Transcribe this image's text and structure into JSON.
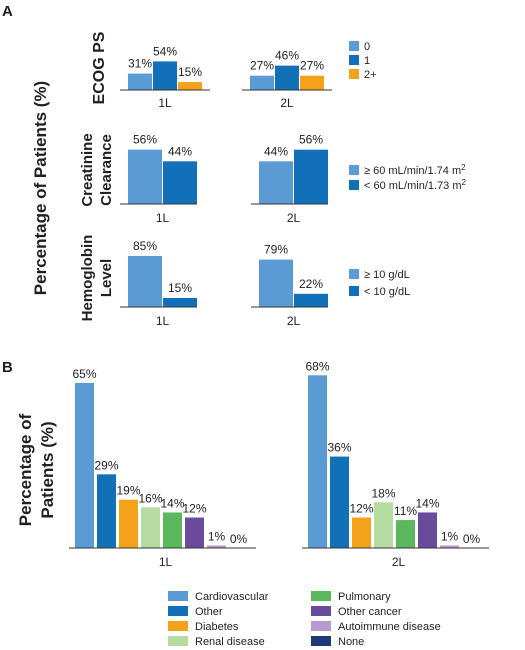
{
  "figure": {
    "panel_a_letter": "A",
    "panel_b_letter": "B",
    "panel_a_ylabel": "Percentage of Patients (%)",
    "panel_b_ylabel_line1": "Percentage of",
    "panel_b_ylabel_line2": "Patients (%)"
  },
  "colors": {
    "c0": "#5b9bd5",
    "c1": "#1170b8",
    "c2": "#f5a21b",
    "renal": "#b5dba0",
    "pulmonary": "#5cb85c",
    "other_cancer": "#6a4a9c",
    "autoimmune": "#b89ad0",
    "none": "#1f3a78"
  },
  "chart_data": [
    {
      "type": "bar",
      "panel": "A",
      "ylabel": "ECOG PS",
      "categories": [
        "1L",
        "2L"
      ],
      "series": [
        {
          "name": "0",
          "color": "#5b9bd5",
          "values": [
            31,
            27
          ]
        },
        {
          "name": "1",
          "color": "#1170b8",
          "values": [
            54,
            46
          ]
        },
        {
          "name": "2+",
          "color": "#f5a21b",
          "values": [
            15,
            27
          ]
        }
      ],
      "data_labels": [
        [
          "31%",
          "54%",
          "15%"
        ],
        [
          "27%",
          "46%",
          "27%"
        ]
      ],
      "legend": "right"
    },
    {
      "type": "bar",
      "panel": "A",
      "ylabel_lines": [
        "Creatinine",
        "Clearance"
      ],
      "categories": [
        "1L",
        "2L"
      ],
      "series": [
        {
          "name_main": "≥ 60 mL/min/1.74 m",
          "name_sup": "2",
          "color": "#5b9bd5",
          "values": [
            56,
            44
          ]
        },
        {
          "name_main": "< 60 mL/min/1.73 m",
          "name_sup": "2",
          "color": "#1170b8",
          "values": [
            44,
            56
          ]
        }
      ],
      "data_labels": [
        [
          "56%",
          "44%"
        ],
        [
          "44%",
          "56%"
        ]
      ],
      "legend": "right"
    },
    {
      "type": "bar",
      "panel": "A",
      "ylabel_lines": [
        "Hemoglobin",
        "Level"
      ],
      "categories": [
        "1L",
        "2L"
      ],
      "series": [
        {
          "name": "≥ 10 g/dL",
          "color": "#5b9bd5",
          "values": [
            85,
            79
          ]
        },
        {
          "name": "< 10 g/dL",
          "color": "#1170b8",
          "values": [
            15,
            22
          ]
        }
      ],
      "data_labels": [
        [
          "85%",
          "15%"
        ],
        [
          "79%",
          "22%"
        ]
      ],
      "legend": "right"
    },
    {
      "type": "bar",
      "panel": "B",
      "categories": [
        "1L",
        "2L"
      ],
      "series": [
        {
          "name": "Cardiovascular",
          "color": "#5b9bd5",
          "values": [
            65,
            68
          ]
        },
        {
          "name": "Other",
          "color": "#1170b8",
          "values": [
            29,
            36
          ]
        },
        {
          "name": "Diabetes",
          "color": "#f5a21b",
          "values": [
            19,
            12
          ]
        },
        {
          "name": "Renal disease",
          "color": "#b5dba0",
          "values": [
            16,
            18
          ]
        },
        {
          "name": "Pulmonary",
          "color": "#5cb85c",
          "values": [
            14,
            11
          ]
        },
        {
          "name": "Other cancer",
          "color": "#6a4a9c",
          "values": [
            12,
            14
          ]
        },
        {
          "name": "Autoimmune disease",
          "color": "#b89ad0",
          "values": [
            1,
            1
          ]
        },
        {
          "name": "None",
          "color": "#1f3a78",
          "values": [
            0,
            0
          ]
        }
      ],
      "data_labels": [
        [
          "65%",
          "29%",
          "19%",
          "16%",
          "14%",
          "12%",
          "1%",
          "0%"
        ],
        [
          "68%",
          "36%",
          "12%",
          "18%",
          "11%",
          "14%",
          "1%",
          "0%"
        ]
      ],
      "legend": "bottom"
    }
  ]
}
